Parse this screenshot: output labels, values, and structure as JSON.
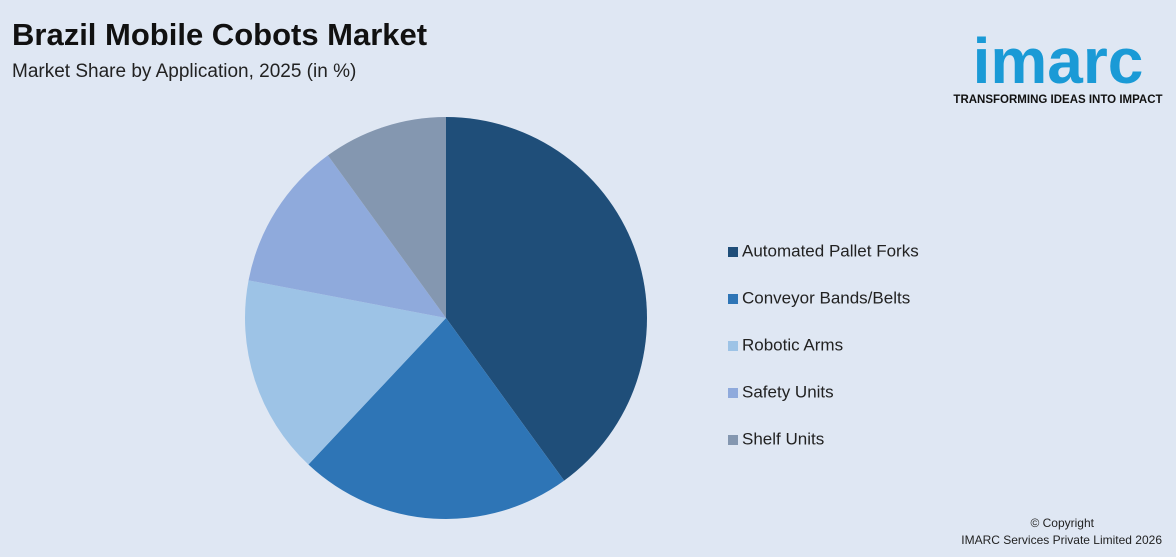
{
  "chart_data": {
    "type": "pie",
    "title": "Brazil Mobile Cobots Market",
    "subtitle": "Market Share by Application, 2025 (in %)",
    "categories": [
      "Automated Pallet Forks",
      "Conveyor Bands/Belts",
      "Robotic Arms",
      "Safety Units",
      "Shelf Units"
    ],
    "values": [
      40,
      22,
      16,
      12,
      10
    ],
    "colors": [
      "#1f4e79",
      "#2e75b6",
      "#9dc3e6",
      "#8faadc",
      "#8497b0"
    ],
    "legend": "right"
  },
  "logo": {
    "name": "imarc",
    "tagline": "TRANSFORMING IDEAS INTO IMPACT"
  },
  "footer": {
    "copyright": "© Copyright",
    "company": "IMARC Services Private Limited 2026"
  }
}
